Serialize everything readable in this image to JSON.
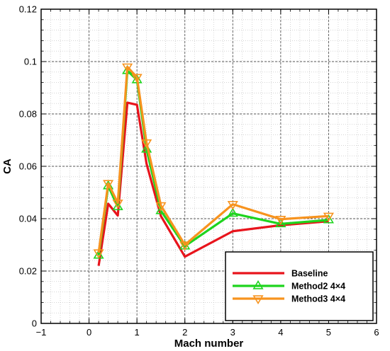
{
  "chart_data": {
    "type": "line",
    "xlabel": "Mach number",
    "ylabel": "CA",
    "xlim": [
      -1,
      6
    ],
    "ylim": [
      0,
      0.12
    ],
    "xticks": [
      -1,
      0,
      1,
      2,
      3,
      4,
      5,
      6
    ],
    "yticks": [
      0,
      0.02,
      0.04,
      0.06,
      0.08,
      0.1,
      0.12
    ],
    "xtick_labels": [
      "−1",
      "0",
      "1",
      "2",
      "3",
      "4",
      "5",
      "6"
    ],
    "ytick_labels": [
      "0",
      "0.02",
      "0.04",
      "0.06",
      "0.08",
      "0.1",
      "0.12"
    ],
    "grid": true,
    "minor_grid": true,
    "legend_position": "bottom-right",
    "series": [
      {
        "name": "Baseline",
        "color": "#e8141c",
        "marker": "none",
        "x": [
          0.2,
          0.4,
          0.6,
          0.8,
          1.0,
          1.2,
          1.5,
          2.0,
          3.0,
          4.0,
          5.0
        ],
        "y": [
          0.022,
          0.0457,
          0.0412,
          0.0843,
          0.0835,
          0.061,
          0.041,
          0.0255,
          0.0352,
          0.0375,
          0.039
        ]
      },
      {
        "name": "Method2 4×4",
        "color": "#1ed41e",
        "marker": "triangle-up",
        "x": [
          0.2,
          0.4,
          0.6,
          0.8,
          1.0,
          1.2,
          1.5,
          2.0,
          3.0,
          4.0,
          5.0
        ],
        "y": [
          0.026,
          0.0525,
          0.0445,
          0.0965,
          0.093,
          0.0665,
          0.043,
          0.0295,
          0.042,
          0.038,
          0.0395
        ]
      },
      {
        "name": "Method3 4×4",
        "color": "#f7931e",
        "marker": "triangle-down",
        "x": [
          0.2,
          0.4,
          0.6,
          0.8,
          1.0,
          1.2,
          1.5,
          2.0,
          3.0,
          4.0,
          5.0
        ],
        "y": [
          0.027,
          0.0535,
          0.046,
          0.098,
          0.094,
          0.069,
          0.045,
          0.03,
          0.0455,
          0.0398,
          0.041
        ]
      }
    ]
  }
}
